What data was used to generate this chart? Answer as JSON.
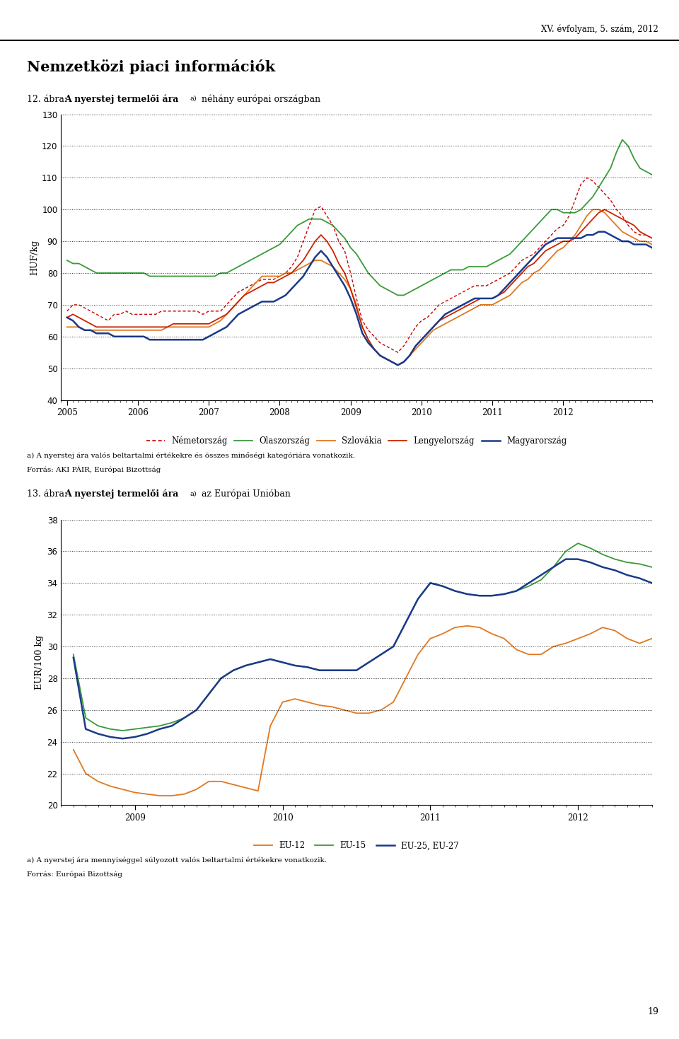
{
  "header_right": "XV. évfolyam, 5. szám, 2012",
  "main_title": "Nemzetközi piaci információk",
  "chart1_label": "12. ábra:",
  "chart1_title_bold": "A nyerstej termelői ára",
  "chart1_title_super": "a)",
  "chart1_title_suffix": " néhány európai országban",
  "chart1_ylabel": "HUF/kg",
  "chart1_ylim": [
    40,
    130
  ],
  "chart1_yticks": [
    40,
    50,
    60,
    70,
    80,
    90,
    100,
    110,
    120,
    130
  ],
  "chart1_note1": "a) A nyerstej ára valós beltartalmi értékekre és összes minőségi kategóriára vonatkozik.",
  "chart1_note2": "Forrás: AKI PÁIR, Európai Bizottság",
  "chart2_label": "13. ábra:",
  "chart2_title_bold": "A nyerstej termelői ára",
  "chart2_title_super": "a)",
  "chart2_title_suffix": " az Európai Unióban",
  "chart2_ylabel": "EUR/100 kg",
  "chart2_ylim": [
    20,
    38
  ],
  "chart2_yticks": [
    20,
    22,
    24,
    26,
    28,
    30,
    32,
    34,
    36,
    38
  ],
  "chart2_note1": "a) A nyerstej ára mennyiséggel súlyozott valós beltartalmi értékekre vonatkozik.",
  "chart2_note2": "Forrás: Európai Bizottság",
  "page_number": "19",
  "germany_color": "#cc0000",
  "italy_color": "#3a9a3a",
  "slovakia_color": "#e07820",
  "poland_color": "#cc2200",
  "hungary_color": "#1a3a8a",
  "eu12_color": "#e07820",
  "eu15_color": "#3a9a3a",
  "eu25_color": "#1a3a8a",
  "chart1_year_labels": [
    "2005",
    "2006",
    "2007",
    "2008",
    "2009",
    "2010",
    "2011",
    "2012"
  ],
  "germany": [
    68,
    70,
    70,
    69,
    68,
    67,
    66,
    65,
    67,
    67,
    68,
    67,
    67,
    67,
    67,
    67,
    68,
    68,
    68,
    68,
    68,
    68,
    68,
    67,
    68,
    68,
    68,
    70,
    72,
    74,
    75,
    76,
    77,
    78,
    78,
    78,
    79,
    80,
    82,
    85,
    90,
    95,
    100,
    101,
    98,
    95,
    90,
    87,
    80,
    72,
    65,
    62,
    60,
    58,
    57,
    56,
    55,
    57,
    60,
    63,
    65,
    66,
    68,
    70,
    71,
    72,
    73,
    74,
    75,
    76,
    76,
    76,
    77,
    78,
    79,
    80,
    82,
    84,
    85,
    86,
    88,
    90,
    92,
    94,
    95,
    98,
    103,
    108,
    110,
    109,
    107,
    105,
    103,
    100,
    98,
    95,
    93,
    92,
    92,
    91
  ],
  "italy": [
    84,
    83,
    83,
    82,
    81,
    80,
    80,
    80,
    80,
    80,
    80,
    80,
    80,
    80,
    79,
    79,
    79,
    79,
    79,
    79,
    79,
    79,
    79,
    79,
    79,
    79,
    80,
    80,
    81,
    82,
    83,
    84,
    85,
    86,
    87,
    88,
    89,
    91,
    93,
    95,
    96,
    97,
    97,
    97,
    96,
    95,
    93,
    91,
    88,
    86,
    83,
    80,
    78,
    76,
    75,
    74,
    73,
    73,
    74,
    75,
    76,
    77,
    78,
    79,
    80,
    81,
    81,
    81,
    82,
    82,
    82,
    82,
    83,
    84,
    85,
    86,
    88,
    90,
    92,
    94,
    96,
    98,
    100,
    100,
    99,
    99,
    99,
    100,
    102,
    104,
    107,
    110,
    113,
    118,
    122,
    120,
    116,
    113,
    112,
    111
  ],
  "slovakia": [
    63,
    63,
    63,
    62,
    62,
    62,
    62,
    62,
    62,
    62,
    62,
    62,
    62,
    62,
    62,
    62,
    62,
    63,
    63,
    63,
    63,
    63,
    63,
    63,
    63,
    64,
    65,
    67,
    69,
    71,
    73,
    75,
    77,
    79,
    79,
    79,
    79,
    80,
    80,
    81,
    82,
    83,
    84,
    84,
    83,
    82,
    80,
    78,
    75,
    70,
    63,
    59,
    56,
    54,
    53,
    52,
    51,
    52,
    54,
    56,
    58,
    60,
    62,
    63,
    64,
    65,
    66,
    67,
    68,
    69,
    70,
    70,
    70,
    71,
    72,
    73,
    75,
    77,
    78,
    80,
    81,
    83,
    85,
    87,
    88,
    90,
    92,
    95,
    98,
    100,
    100,
    99,
    97,
    95,
    93,
    92,
    91,
    90,
    90,
    89
  ],
  "poland": [
    66,
    67,
    66,
    65,
    64,
    63,
    63,
    63,
    63,
    63,
    63,
    63,
    63,
    63,
    63,
    63,
    63,
    63,
    64,
    64,
    64,
    64,
    64,
    64,
    64,
    65,
    66,
    67,
    69,
    71,
    73,
    74,
    75,
    76,
    77,
    77,
    78,
    79,
    80,
    82,
    84,
    87,
    90,
    92,
    90,
    87,
    83,
    80,
    75,
    69,
    63,
    59,
    56,
    54,
    53,
    52,
    51,
    52,
    54,
    57,
    59,
    61,
    63,
    65,
    66,
    67,
    68,
    69,
    70,
    71,
    72,
    72,
    72,
    73,
    74,
    76,
    78,
    80,
    82,
    83,
    85,
    87,
    88,
    89,
    90,
    90,
    91,
    93,
    95,
    97,
    99,
    100,
    99,
    98,
    97,
    96,
    95,
    93,
    92,
    91
  ],
  "hungary": [
    66,
    65,
    63,
    62,
    62,
    61,
    61,
    61,
    60,
    60,
    60,
    60,
    60,
    60,
    59,
    59,
    59,
    59,
    59,
    59,
    59,
    59,
    59,
    59,
    60,
    61,
    62,
    63,
    65,
    67,
    68,
    69,
    70,
    71,
    71,
    71,
    72,
    73,
    75,
    77,
    79,
    82,
    85,
    87,
    85,
    82,
    79,
    76,
    72,
    67,
    61,
    58,
    56,
    54,
    53,
    52,
    51,
    52,
    54,
    57,
    59,
    61,
    63,
    65,
    67,
    68,
    69,
    70,
    71,
    72,
    72,
    72,
    72,
    73,
    75,
    77,
    79,
    81,
    83,
    85,
    87,
    89,
    90,
    91,
    91,
    91,
    91,
    91,
    92,
    92,
    93,
    93,
    92,
    91,
    90,
    90,
    89,
    89,
    89,
    88
  ],
  "eu12": [
    23.5,
    22.0,
    21.5,
    21.2,
    21.0,
    20.8,
    20.7,
    20.6,
    20.6,
    20.7,
    21.0,
    21.5,
    21.5,
    21.3,
    21.1,
    20.9,
    25.0,
    26.5,
    26.7,
    26.5,
    26.3,
    26.2,
    26.0,
    25.8,
    25.8,
    26.0,
    26.5,
    28.0,
    29.5,
    30.5,
    30.8,
    31.2,
    31.3,
    31.2,
    30.8,
    30.5,
    29.8,
    29.5,
    29.5,
    30.0,
    30.2,
    30.5,
    30.8,
    31.2,
    31.0,
    30.5,
    30.2,
    30.5
  ],
  "eu15": [
    29.5,
    25.5,
    25.0,
    24.8,
    24.7,
    24.8,
    24.9,
    25.0,
    25.2,
    25.5,
    26.0,
    27.0,
    28.0,
    28.5,
    28.8,
    29.0,
    29.2,
    29.0,
    28.8,
    28.7,
    28.5,
    28.5,
    28.5,
    28.5,
    29.0,
    29.5,
    30.0,
    31.5,
    33.0,
    34.0,
    33.8,
    33.5,
    33.3,
    33.2,
    33.2,
    33.3,
    33.5,
    33.8,
    34.2,
    35.0,
    36.0,
    36.5,
    36.2,
    35.8,
    35.5,
    35.3,
    35.2,
    35.0
  ],
  "eu25": [
    29.3,
    24.8,
    24.5,
    24.3,
    24.2,
    24.3,
    24.5,
    24.8,
    25.0,
    25.5,
    26.0,
    27.0,
    28.0,
    28.5,
    28.8,
    29.0,
    29.2,
    29.0,
    28.8,
    28.7,
    28.5,
    28.5,
    28.5,
    28.5,
    29.0,
    29.5,
    30.0,
    31.5,
    33.0,
    34.0,
    33.8,
    33.5,
    33.3,
    33.2,
    33.2,
    33.3,
    33.5,
    34.0,
    34.5,
    35.0,
    35.5,
    35.5,
    35.3,
    35.0,
    34.8,
    34.5,
    34.3,
    34.0
  ]
}
